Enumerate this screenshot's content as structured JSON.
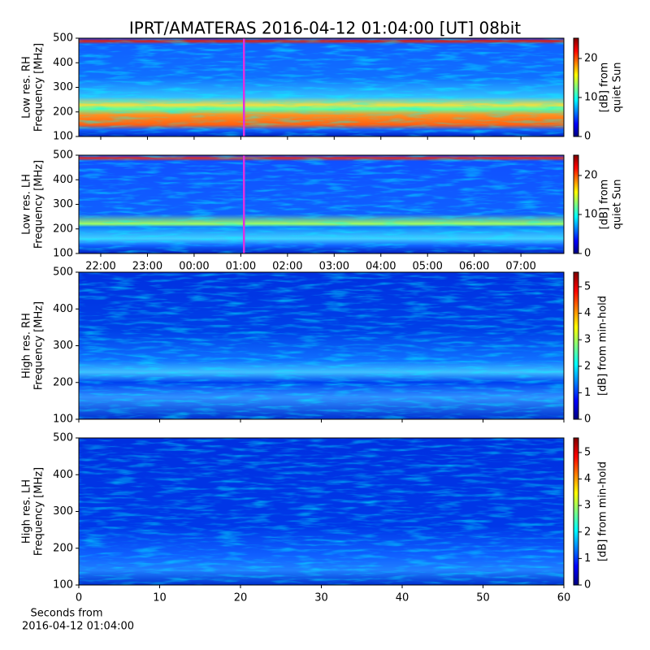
{
  "title": "IPRT/AMATERAS 2016-04-12 01:04:00 [UT]   08bit",
  "chart_data": [
    {
      "type": "heatmap",
      "ylabel": [
        "Low res. RH",
        "Frequency [MHz]"
      ],
      "ylim": [
        100,
        500
      ],
      "yticks": [
        100,
        200,
        300,
        400,
        500
      ],
      "xlim": [
        21.53,
        31.92
      ],
      "xticks": [
        22,
        23,
        24,
        25,
        26,
        27,
        28,
        29,
        30,
        31
      ],
      "cursor_x": 25.067,
      "cursor_color": "#e030e0",
      "clim": [
        0,
        25.2
      ],
      "cticks": [
        0,
        10,
        20
      ],
      "clabel": [
        "[dB] from",
        "quiet Sun"
      ]
    },
    {
      "type": "heatmap",
      "ylabel": [
        "Low res. LH",
        "Frequency [MHz]"
      ],
      "ylim": [
        100,
        500
      ],
      "yticks": [
        100,
        200,
        300,
        400,
        500
      ],
      "xlim": [
        21.53,
        31.92
      ],
      "xticks": [
        {
          "value": 22,
          "label": "22:00"
        },
        {
          "value": 23,
          "label": "23:00"
        },
        {
          "value": 24,
          "label": "00:00"
        },
        {
          "value": 25,
          "label": "01:00"
        },
        {
          "value": 26,
          "label": "02:00"
        },
        {
          "value": 27,
          "label": "03:00"
        },
        {
          "value": 28,
          "label": "04:00"
        },
        {
          "value": 29,
          "label": "05:00"
        },
        {
          "value": 30,
          "label": "06:00"
        },
        {
          "value": 31,
          "label": "07:00"
        }
      ],
      "cursor_x": 25.067,
      "cursor_color": "#e030e0",
      "clim": [
        0,
        25.2
      ],
      "cticks": [
        0,
        10,
        20
      ],
      "clabel": [
        "[dB] from",
        "quiet Sun"
      ]
    },
    {
      "type": "heatmap",
      "ylabel": [
        "High res. RH",
        "Frequency [MHz]"
      ],
      "ylim": [
        100,
        500
      ],
      "yticks": [
        100,
        200,
        300,
        400,
        500
      ],
      "xlim": [
        0,
        60
      ],
      "xticks": [
        0,
        10,
        20,
        30,
        40,
        50,
        60
      ],
      "clim": [
        0,
        5.55
      ],
      "cticks": [
        0,
        1,
        2,
        3,
        4,
        5
      ],
      "clabel": [
        "[dB] from min-hold"
      ]
    },
    {
      "type": "heatmap",
      "ylabel": [
        "High res. LH",
        "Frequency [MHz]"
      ],
      "ylim": [
        100,
        500
      ],
      "yticks": [
        100,
        200,
        300,
        400,
        500
      ],
      "xlim": [
        0,
        60
      ],
      "xticks": [
        0,
        10,
        20,
        30,
        40,
        50,
        60
      ],
      "clim": [
        0,
        5.55
      ],
      "cticks": [
        0,
        1,
        2,
        3,
        4,
        5
      ],
      "clabel": [
        "[dB] from min-hold"
      ],
      "xlabel": [
        "Seconds from",
        "2016-04-12 01:04:00"
      ]
    }
  ]
}
